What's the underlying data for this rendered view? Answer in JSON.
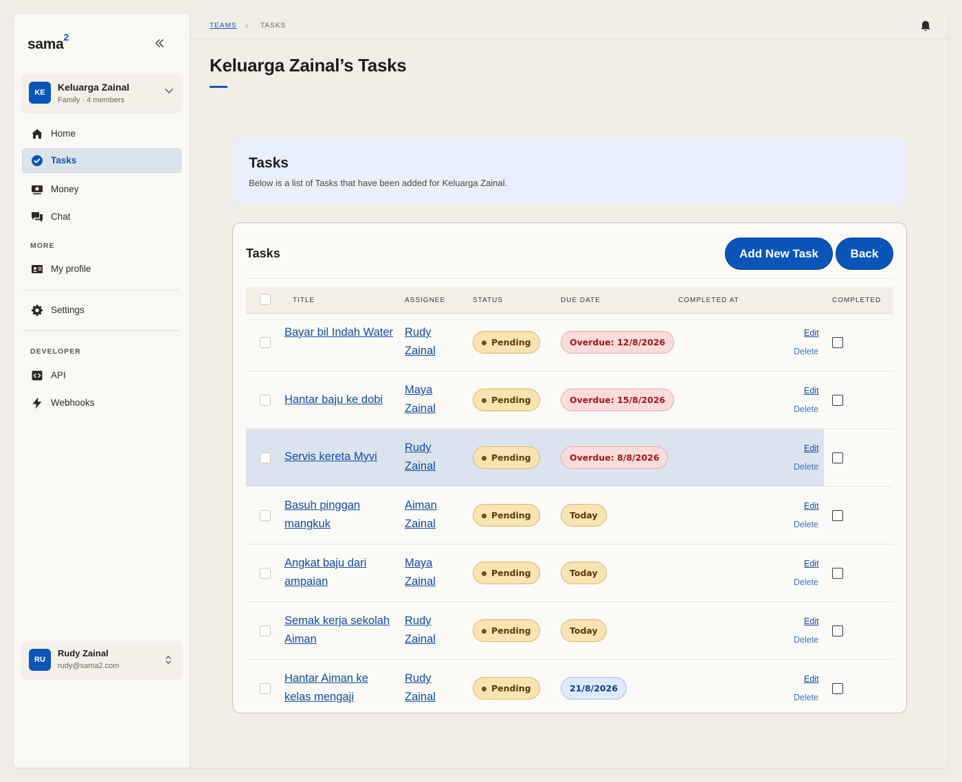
{
  "app": {
    "logo_text": "sama",
    "logo_sup": "2"
  },
  "team": {
    "initials": "KE",
    "name": "Keluarga Zainal",
    "subtitle": "Family · 4 members"
  },
  "nav": {
    "main": [
      {
        "label": "Home",
        "icon": "home-icon"
      },
      {
        "label": "Tasks",
        "icon": "check-circle-icon",
        "active": true
      },
      {
        "label": "Money",
        "icon": "money-icon"
      },
      {
        "label": "Chat",
        "icon": "chat-icon"
      }
    ],
    "more_label": "MORE",
    "more": [
      {
        "label": "My profile",
        "icon": "id-card-icon"
      }
    ],
    "settings": {
      "label": "Settings",
      "icon": "gear-icon"
    },
    "developer_label": "DEVELOPER",
    "developer": [
      {
        "label": "API",
        "icon": "code-icon"
      },
      {
        "label": "Webhooks",
        "icon": "bolt-icon"
      }
    ]
  },
  "user": {
    "initials": "RU",
    "name": "Rudy Zainal",
    "email": "rudy@sama2.com"
  },
  "breadcrumb": {
    "parent": "TEAMS",
    "current": "TASKS"
  },
  "page": {
    "title": "Keluarga Zainal’s Tasks"
  },
  "info": {
    "title": "Tasks",
    "description": "Below is a list of Tasks that have been added for Keluarga Zainal."
  },
  "card": {
    "title": "Tasks",
    "add_label": "Add New Task",
    "back_label": "Back",
    "columns": {
      "title": "TITLE",
      "assignee": "ASSIGNEE",
      "status": "STATUS",
      "due": "DUE DATE",
      "completed_at": "COMPLETED AT",
      "completed": "COMPLETED"
    },
    "edit_label": "Edit",
    "delete_label": "Delete"
  },
  "tasks": [
    {
      "title": "Bayar bil Indah Water",
      "assignee": "Rudy Zainal",
      "status": "Pending",
      "due": "Overdue: 12/8/2026",
      "due_type": "overdue"
    },
    {
      "title": "Hantar baju ke dobi",
      "assignee": "Maya Zainal",
      "status": "Pending",
      "due": "Overdue: 15/8/2026",
      "due_type": "overdue"
    },
    {
      "title": "Servis kereta Myvi",
      "assignee": "Rudy Zainal",
      "status": "Pending",
      "due": "Overdue: 8/8/2026",
      "due_type": "overdue",
      "highlight": true
    },
    {
      "title": "Basuh pinggan mangkuk",
      "assignee": "Aiman Zainal",
      "status": "Pending",
      "due": "Today",
      "due_type": "today"
    },
    {
      "title": "Angkat baju dari ampaian",
      "assignee": "Maya Zainal",
      "status": "Pending",
      "due": "Today",
      "due_type": "today"
    },
    {
      "title": "Semak kerja sekolah Aiman",
      "assignee": "Rudy Zainal",
      "status": "Pending",
      "due": "Today",
      "due_type": "today"
    },
    {
      "title": "Hantar Aiman ke kelas mengaji",
      "assignee": "Rudy Zainal",
      "status": "Pending",
      "due": "21/8/2026",
      "due_type": "future"
    }
  ],
  "colors": {
    "brand": "#0a56b8",
    "overdue": "#a11616",
    "pending": "#f8e3b2",
    "future": "#dceafb"
  }
}
